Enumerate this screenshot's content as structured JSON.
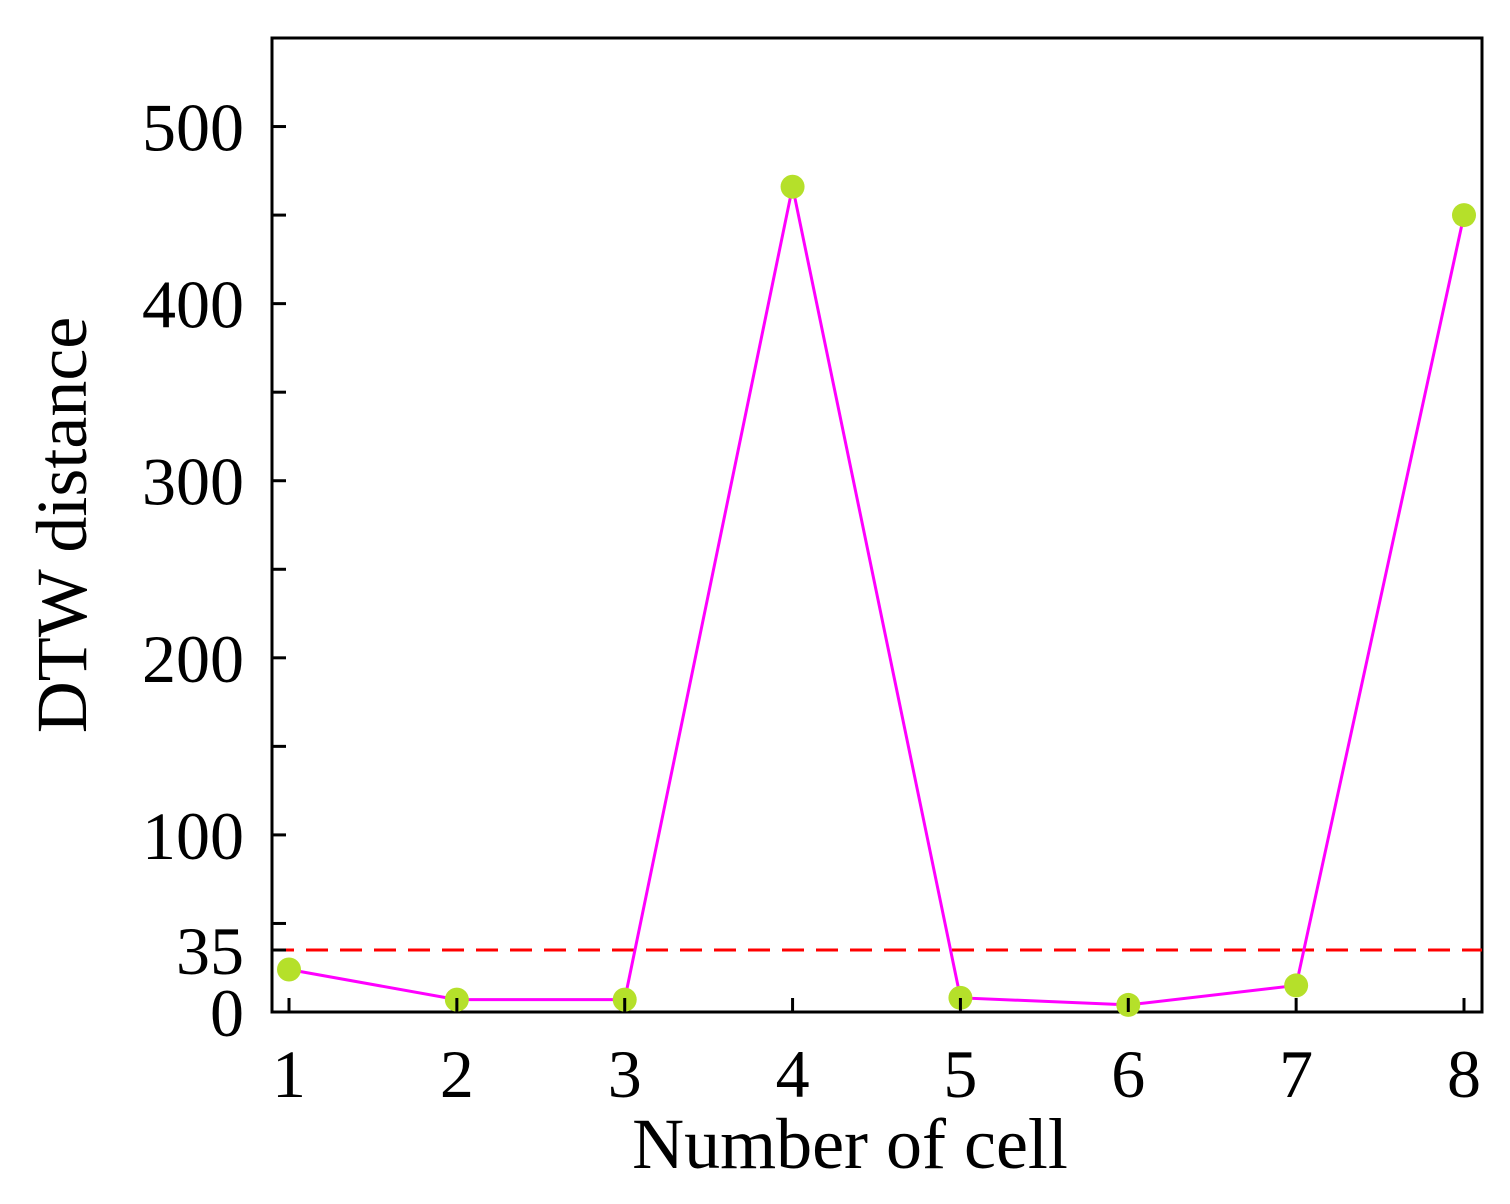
{
  "chart_data": {
    "type": "line",
    "xlabel": "Number of cell",
    "ylabel": "DTW distance",
    "xlim": [
      1,
      8
    ],
    "ylim": [
      0,
      550
    ],
    "x_ticks": [
      1,
      2,
      3,
      4,
      5,
      6,
      7,
      8
    ],
    "y_tick_labels": [
      0,
      35,
      100,
      200,
      300,
      400,
      500
    ],
    "y_minor_ticks": [
      50,
      150,
      250,
      350,
      450
    ],
    "series": [
      {
        "x": [
          1,
          2,
          3,
          4,
          5,
          6,
          7,
          8
        ],
        "values": [
          24,
          7,
          7,
          466,
          8,
          4,
          15,
          450
        ],
        "line_color": "#ff00ff",
        "marker_color": "#b5e02a"
      }
    ],
    "threshold": {
      "value": 35,
      "style": "dashed",
      "color": "#ff0000"
    },
    "grid": false,
    "legend": "none"
  }
}
